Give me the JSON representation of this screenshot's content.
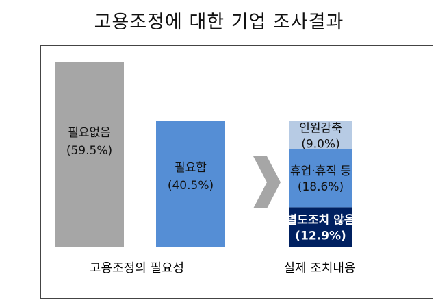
{
  "title": "고용조정에 대한 기업 조사결과",
  "chart_data": [
    {
      "type": "bar",
      "xlabel": "고용조정의 필요성",
      "categories": [
        "필요없음",
        "필요함"
      ],
      "values": [
        59.5,
        40.5
      ],
      "value_labels": [
        "(59.5%)",
        "(40.5%)"
      ],
      "colors": [
        "#a6a6a6",
        "#558ed5"
      ],
      "ylim": [
        0,
        62
      ]
    },
    {
      "type": "bar",
      "stacked": true,
      "xlabel": "실제 조치내용",
      "series": [
        {
          "name": "별도조치 않음",
          "values": [
            12.9
          ],
          "value_label": "(12.9%)",
          "color": "#002060",
          "text_color": "#ffffff"
        },
        {
          "name": "휴업·휴직 등",
          "values": [
            18.6
          ],
          "value_label": "(18.6%)",
          "color": "#558ed5",
          "text_color": "#111111"
        },
        {
          "name": "인원감축",
          "values": [
            9.0
          ],
          "value_label": "(9.0%)",
          "color": "#b7cbe4",
          "text_color": "#111111"
        }
      ],
      "total": 40.5
    }
  ],
  "colors": {
    "arrow": "#a6a6a6",
    "frame": "#444444"
  }
}
